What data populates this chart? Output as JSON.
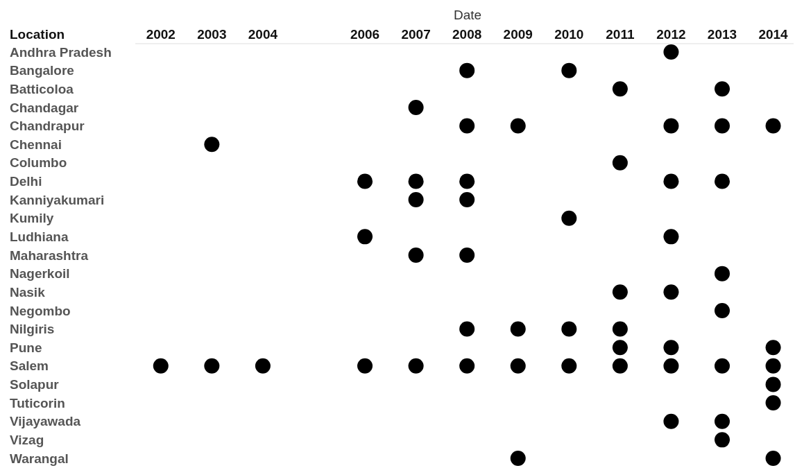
{
  "chart_data": {
    "type": "scatter",
    "orientation": "horizontal",
    "xlabel": "Date",
    "ylabel": "Location",
    "marker": "circle",
    "categories": [
      "Andhra Pradesh",
      "Bangalore",
      "Batticoloa",
      "Chandagar",
      "Chandrapur",
      "Chennai",
      "Columbo",
      "Delhi",
      "Kanniyakumari",
      "Kumily",
      "Ludhiana",
      "Maharashtra",
      "Nagerkoil",
      "Nasik",
      "Negombo",
      "Nilgiris",
      "Pune",
      "Salem",
      "Solapur",
      "Tuticorin",
      "Vijayawada",
      "Vizag",
      "Warangal"
    ],
    "xlim": [
      2001.5,
      2014.4
    ],
    "xticks": [
      2002,
      2003,
      2004,
      2006,
      2007,
      2008,
      2009,
      2010,
      2011,
      2012,
      2013,
      2014
    ],
    "series": [
      {
        "color": "#000000",
        "x": [
          "Andhra Pradesh",
          "Bangalore",
          "Bangalore",
          "Batticoloa",
          "Batticoloa",
          "Chandagar",
          "Chandrapur",
          "Chandrapur",
          "Chandrapur",
          "Chandrapur",
          "Chandrapur",
          "Chennai",
          "Columbo",
          "Delhi",
          "Delhi",
          "Delhi",
          "Delhi",
          "Delhi",
          "Kanniyakumari",
          "Kanniyakumari",
          "Kumily",
          "Ludhiana",
          "Ludhiana",
          "Maharashtra",
          "Maharashtra",
          "Nagerkoil",
          "Nasik",
          "Nasik",
          "Negombo",
          "Nilgiris",
          "Nilgiris",
          "Nilgiris",
          "Nilgiris",
          "Pune",
          "Pune",
          "Pune",
          "Salem",
          "Salem",
          "Salem",
          "Salem",
          "Salem",
          "Salem",
          "Salem",
          "Salem",
          "Salem",
          "Salem",
          "Salem",
          "Salem",
          "Solapur",
          "Tuticorin",
          "Vijayawada",
          "Vijayawada",
          "Vizag",
          "Warangal",
          "Warangal"
        ],
        "values": [
          2012,
          2008,
          2010,
          2011,
          2013,
          2007,
          2008,
          2009,
          2012,
          2013,
          2014,
          2003,
          2011,
          2006,
          2007,
          2008,
          2012,
          2013,
          2007,
          2008,
          2010,
          2006,
          2012,
          2007,
          2008,
          2013,
          2011,
          2012,
          2013,
          2008,
          2009,
          2010,
          2011,
          2011,
          2012,
          2014,
          2002,
          2003,
          2004,
          2006,
          2007,
          2008,
          2009,
          2010,
          2011,
          2012,
          2013,
          2014,
          2014,
          2014,
          2012,
          2013,
          2013,
          2009,
          2014
        ]
      }
    ]
  }
}
